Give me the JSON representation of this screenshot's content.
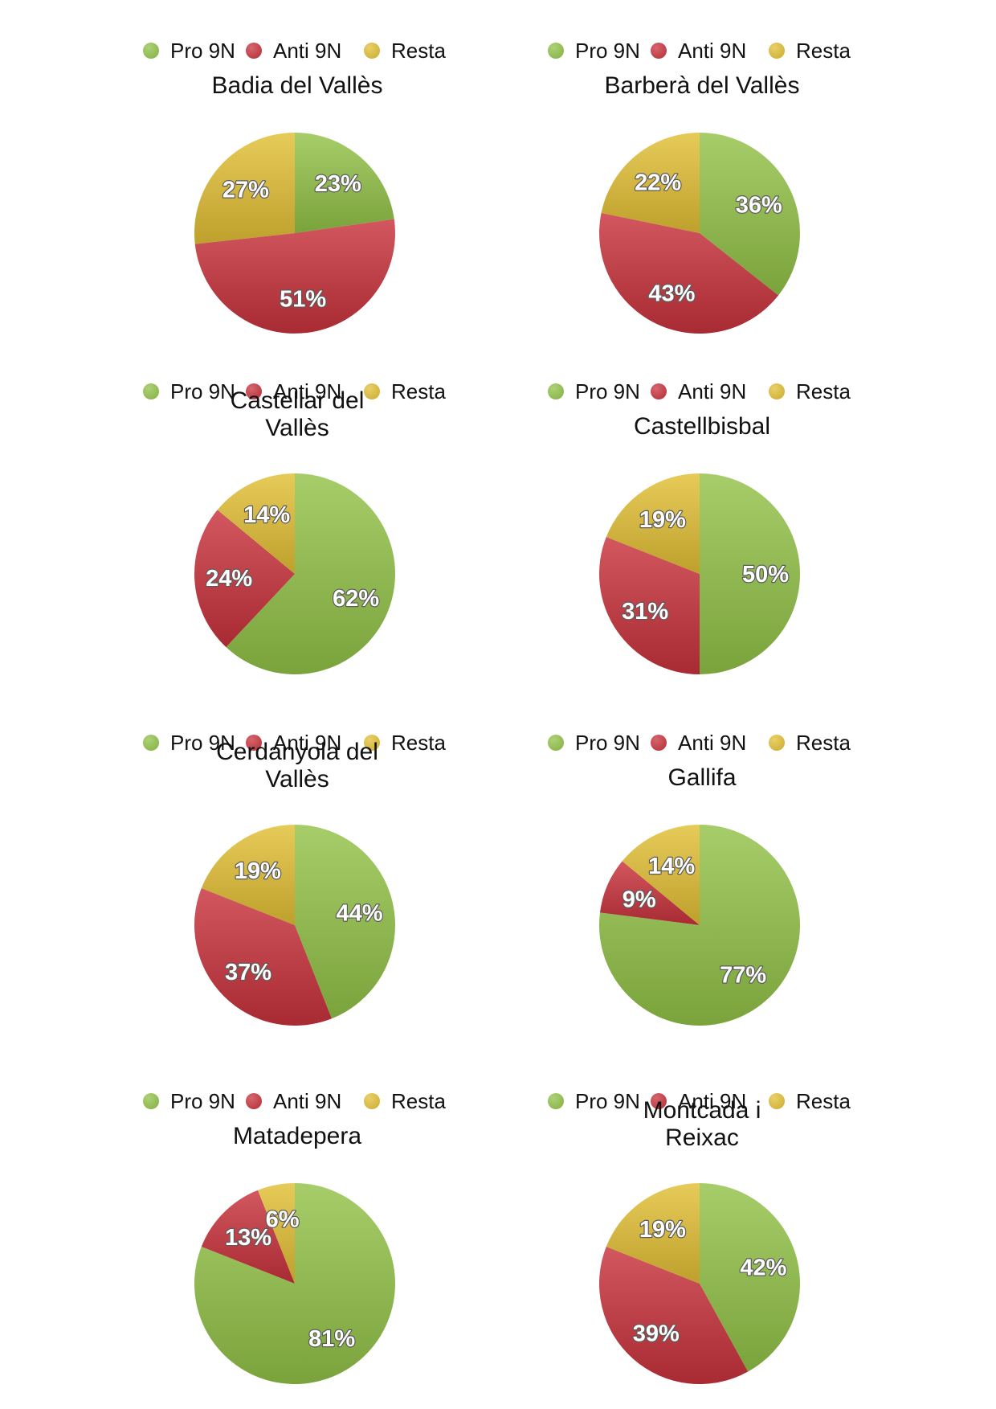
{
  "legend": [
    {
      "label": "Pro 9N",
      "color": "#92c248"
    },
    {
      "label": "Anti 9N",
      "color": "#c8323c"
    },
    {
      "label": "Resta",
      "color": "#e2bf34"
    }
  ],
  "chart_data": [
    {
      "type": "pie",
      "title": "Badia del Vallès",
      "title_lines": [
        "Badia del Vallès"
      ],
      "values": [
        23,
        51,
        27
      ],
      "labels": [
        "23%",
        "51%",
        "27%"
      ]
    },
    {
      "type": "pie",
      "title": "Barberà del Vallès",
      "title_lines": [
        "Barberà del Vallès"
      ],
      "values": [
        36,
        43,
        22
      ],
      "labels": [
        "36%",
        "43%",
        "22%"
      ]
    },
    {
      "type": "pie",
      "title": "Castellar del Vallès",
      "title_lines": [
        "Castellar del",
        "Vallès"
      ],
      "values": [
        62,
        24,
        14
      ],
      "labels": [
        "62%",
        "24%",
        "14%"
      ]
    },
    {
      "type": "pie",
      "title": "Castellbisbal",
      "title_lines": [
        "Castellbisbal"
      ],
      "values": [
        50,
        31,
        19
      ],
      "labels": [
        "50%",
        "31%",
        "19%"
      ]
    },
    {
      "type": "pie",
      "title": "Cerdanyola del Vallès",
      "title_lines": [
        "Cerdanyola del",
        "Vallès"
      ],
      "values": [
        44,
        37,
        19
      ],
      "labels": [
        "44%",
        "37%",
        "19%"
      ]
    },
    {
      "type": "pie",
      "title": "Gallifa",
      "title_lines": [
        "Gallifa"
      ],
      "values": [
        77,
        9,
        14
      ],
      "labels": [
        "77%",
        "9%",
        "14%"
      ]
    },
    {
      "type": "pie",
      "title": "Matadepera",
      "title_lines": [
        "Matadepera"
      ],
      "values": [
        81,
        13,
        6
      ],
      "labels": [
        "81%",
        "13%",
        "6%"
      ]
    },
    {
      "type": "pie",
      "title": "Montcada i Reixac",
      "title_lines": [
        "Montcada i",
        "Reixac"
      ],
      "values": [
        42,
        39,
        19
      ],
      "labels": [
        "42%",
        "39%",
        "19%"
      ]
    }
  ]
}
